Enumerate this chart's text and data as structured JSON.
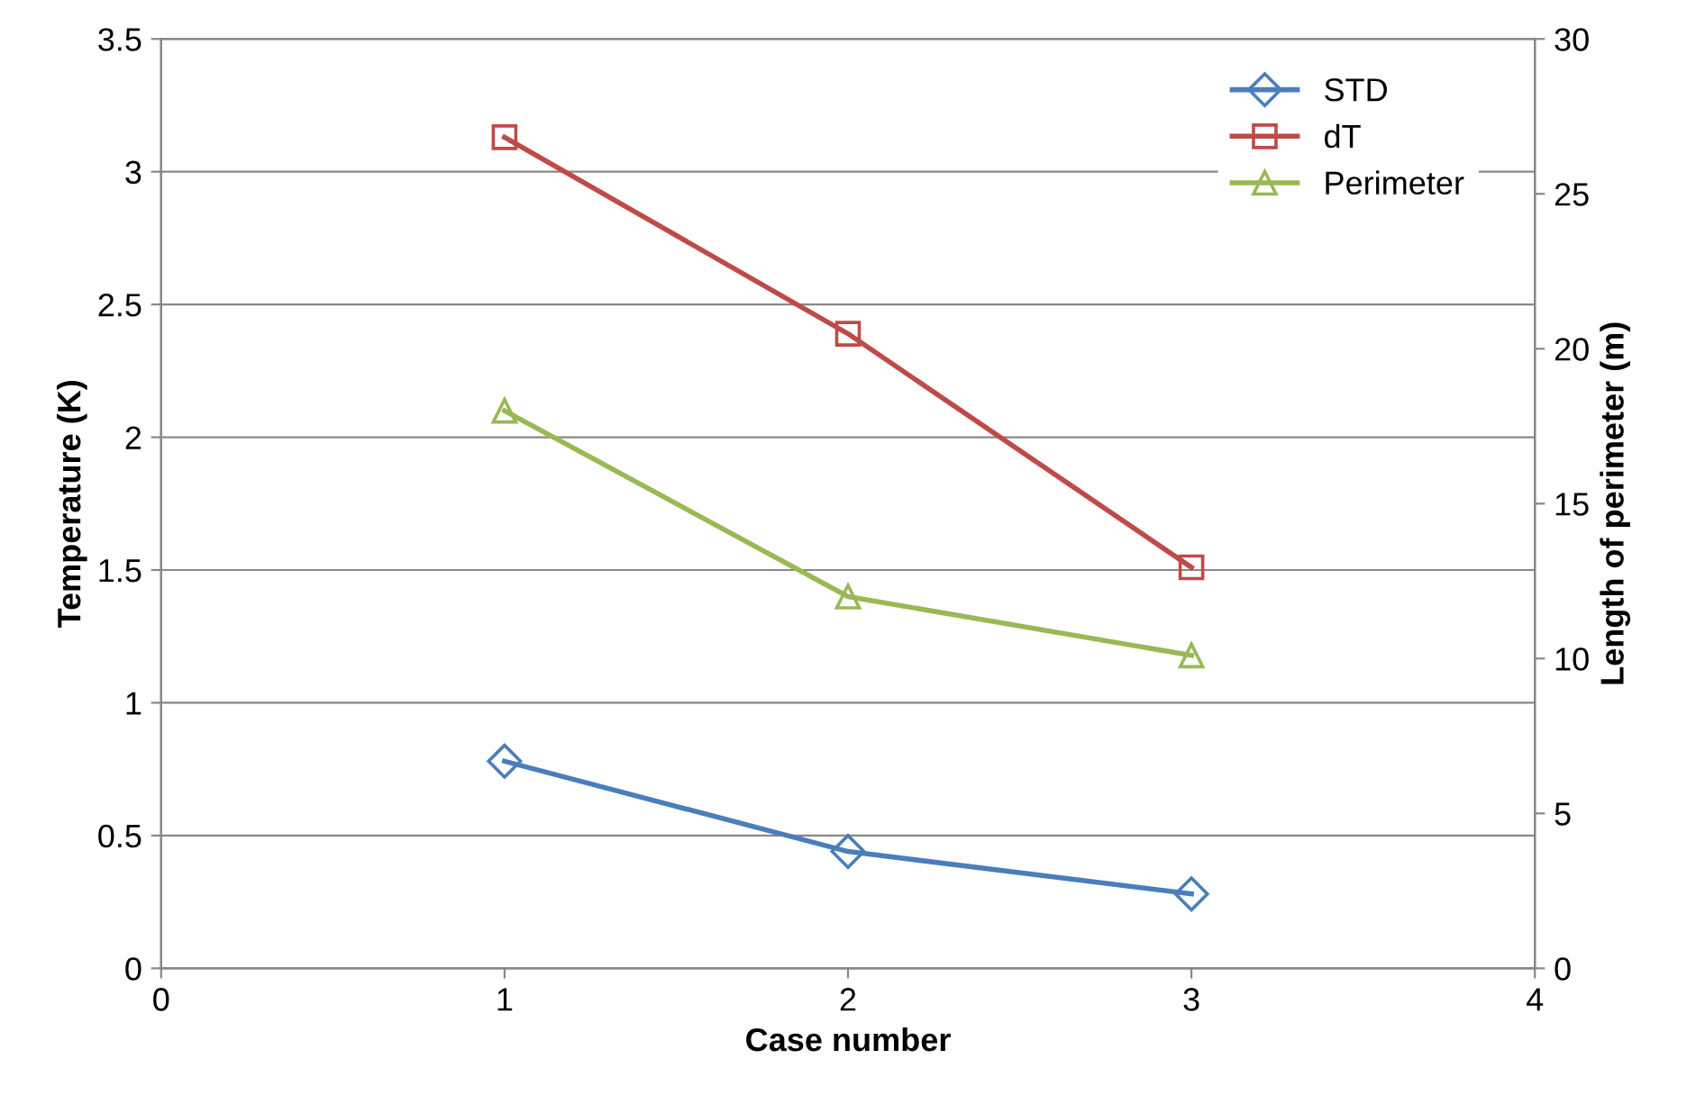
{
  "chart_data": {
    "type": "line",
    "xlabel": "Case number",
    "ylabel": "Temperature (K)",
    "y2label": "Length of perimeter (m)",
    "x": [
      1,
      2,
      3
    ],
    "series": [
      {
        "name": "STD",
        "color": "#4a7ebb",
        "marker": "diamond",
        "values": [
          0.78,
          0.44,
          0.28
        ]
      },
      {
        "name": "dT",
        "color": "#be4b48",
        "marker": "square",
        "values": [
          3.13,
          2.39,
          1.51
        ]
      },
      {
        "name": "Perimeter",
        "color": "#98b954",
        "marker": "triangle",
        "axis": "y2",
        "values": [
          18,
          12,
          10.1
        ]
      }
    ],
    "xlim": [
      0,
      4
    ],
    "xticks": [
      0,
      1,
      2,
      3,
      4
    ],
    "ylim": [
      0,
      3.5
    ],
    "yticks": [
      0,
      0.5,
      1,
      1.5,
      2,
      2.5,
      3,
      3.5
    ],
    "y2lim": [
      0,
      30
    ],
    "y2ticks": [
      0,
      5,
      10,
      15,
      20,
      25,
      30
    ],
    "grid": "y",
    "legend": "top right"
  }
}
